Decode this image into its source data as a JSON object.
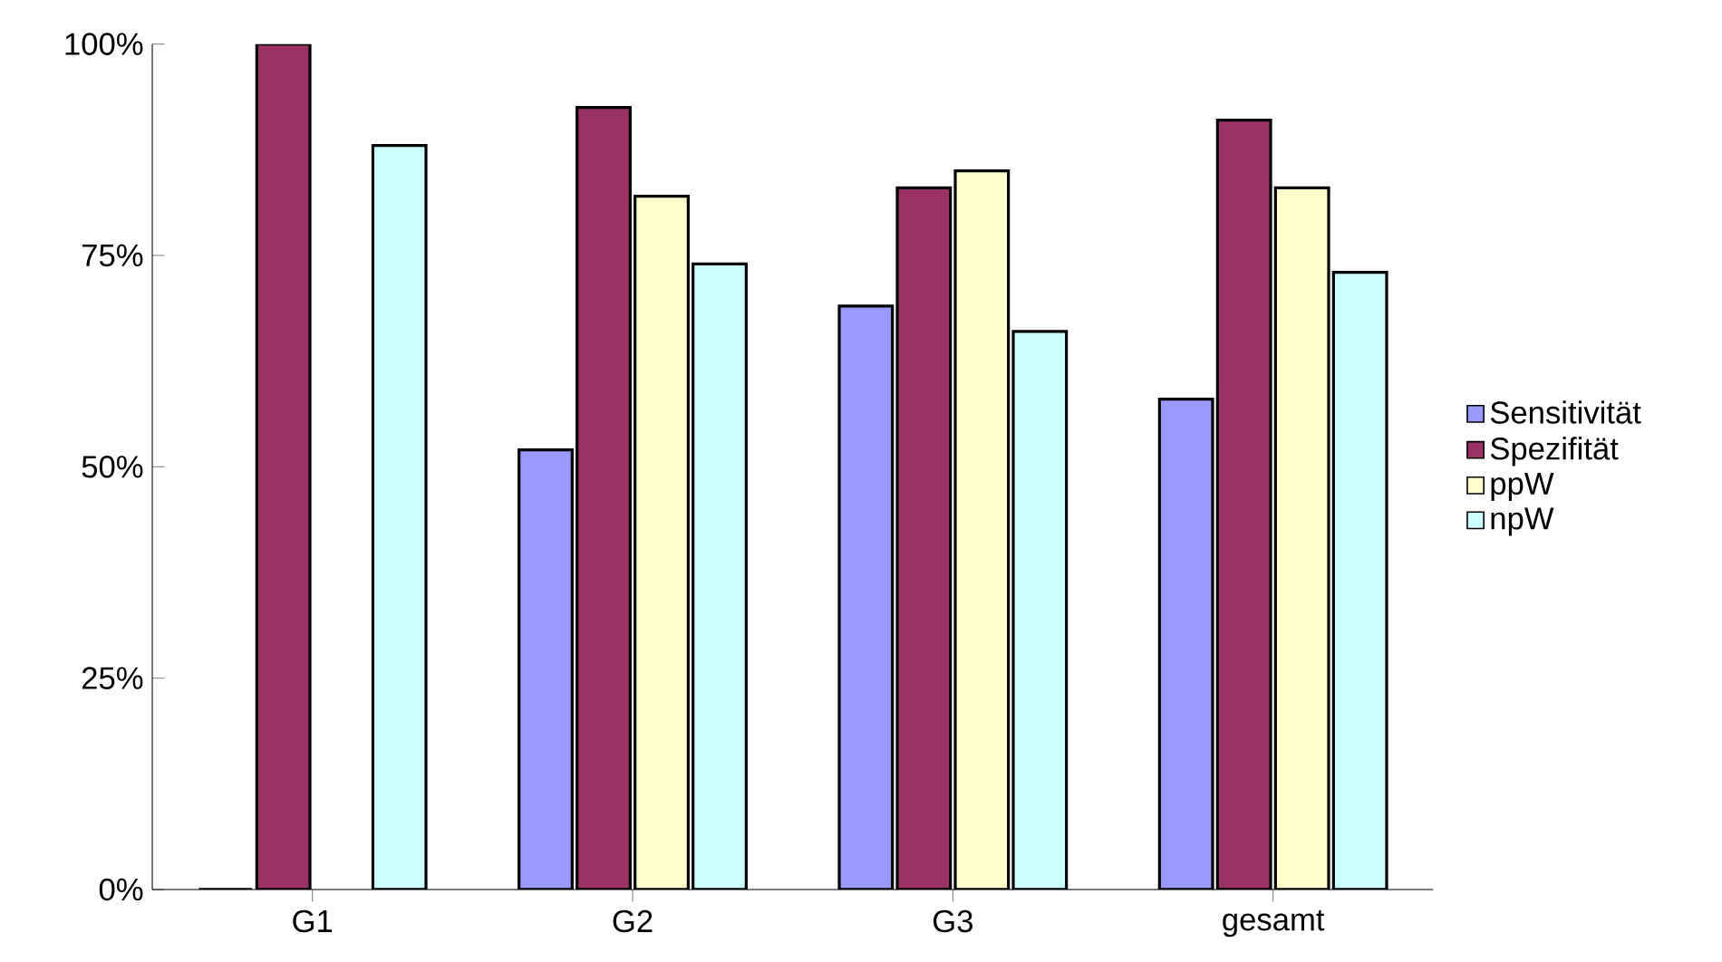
{
  "chart_data": {
    "type": "bar",
    "categories": [
      "G1",
      "G2",
      "G3",
      "gesamt"
    ],
    "series": [
      {
        "name": "Sensitivität",
        "color": "#9999ff",
        "values": [
          0,
          52,
          69,
          58
        ]
      },
      {
        "name": "Spezifität",
        "color": "#993366",
        "values": [
          100,
          92.5,
          83,
          91
        ]
      },
      {
        "name": "ppW",
        "color": "#ffffcc",
        "values": [
          null,
          82,
          85,
          83
        ]
      },
      {
        "name": "npW",
        "color": "#ccffff",
        "values": [
          88,
          74,
          66,
          73
        ]
      }
    ],
    "ylim": [
      0,
      100
    ],
    "yticks": [
      {
        "value": 0,
        "label": "0%"
      },
      {
        "value": 25,
        "label": "25%"
      },
      {
        "value": 50,
        "label": "50%"
      },
      {
        "value": 75,
        "label": "75%"
      },
      {
        "value": 100,
        "label": "100%"
      }
    ],
    "grid": false,
    "legend": "right"
  }
}
